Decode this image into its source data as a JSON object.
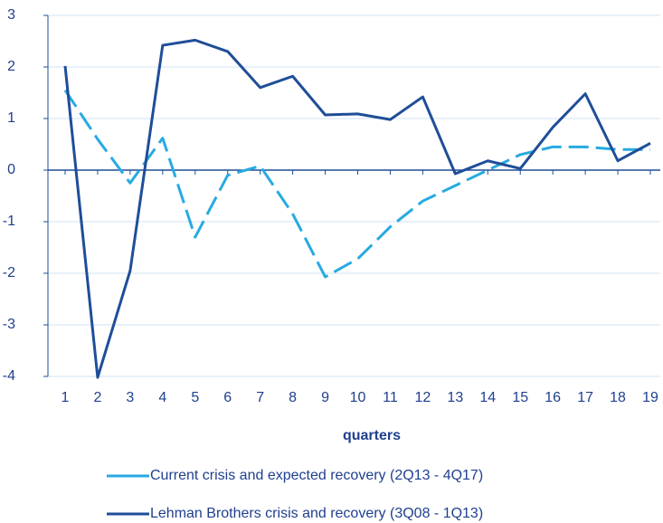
{
  "chart_data": {
    "type": "line",
    "x_label": "quarters",
    "categories": [
      1,
      2,
      3,
      4,
      5,
      6,
      7,
      8,
      9,
      10,
      11,
      12,
      13,
      14,
      15,
      16,
      17,
      18,
      19
    ],
    "series": [
      {
        "name": "Current crisis and expected recovery (2Q13 - 4Q17)",
        "color": "#27aae1",
        "dashed": true,
        "values": [
          1.55,
          0.6,
          -0.25,
          0.62,
          -1.3,
          -0.1,
          0.08,
          -0.85,
          -2.07,
          -1.72,
          -1.1,
          -0.6,
          -0.3,
          0.0,
          0.3,
          0.45,
          0.45,
          0.4,
          0.4
        ]
      },
      {
        "name": "Lehman Brothers crisis and recovery (3Q08 - 1Q13)",
        "color": "#1f4e99",
        "dashed": false,
        "values": [
          2.02,
          -4.02,
          -1.95,
          2.42,
          2.52,
          2.3,
          1.6,
          1.82,
          1.07,
          1.09,
          0.98,
          1.42,
          -0.07,
          0.18,
          0.03,
          0.83,
          1.48,
          0.18,
          0.52
        ]
      }
    ],
    "ylim": [
      -4,
      3
    ],
    "yticks": [
      -4,
      -3,
      -2,
      -1,
      0,
      1,
      2,
      3
    ],
    "grid": true,
    "legend": "bottom"
  }
}
